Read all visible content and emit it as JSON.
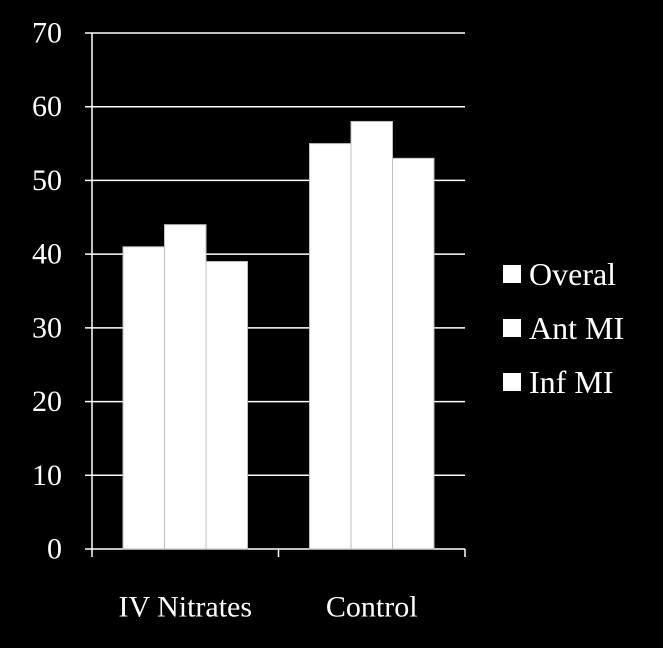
{
  "chart_data": {
    "type": "bar",
    "title": "",
    "xlabel": "",
    "ylabel": "",
    "categories": [
      "IV Nitrates",
      "Control"
    ],
    "series": [
      {
        "name": "Overal",
        "values": [
          41,
          55
        ],
        "color": "#ffffff"
      },
      {
        "name": "Ant MI",
        "values": [
          44,
          58
        ],
        "color": "#ffffff"
      },
      {
        "name": "Inf MI",
        "values": [
          39,
          53
        ],
        "color": "#ffffff"
      }
    ],
    "ylim": [
      0,
      70
    ],
    "yticks": [
      0,
      10,
      20,
      30,
      40,
      50,
      60,
      70
    ],
    "grid": true,
    "legend_position": "right",
    "colors": {
      "background": "#000000",
      "foreground": "#ffffff",
      "bar_separator": "#bfbfbf"
    }
  }
}
